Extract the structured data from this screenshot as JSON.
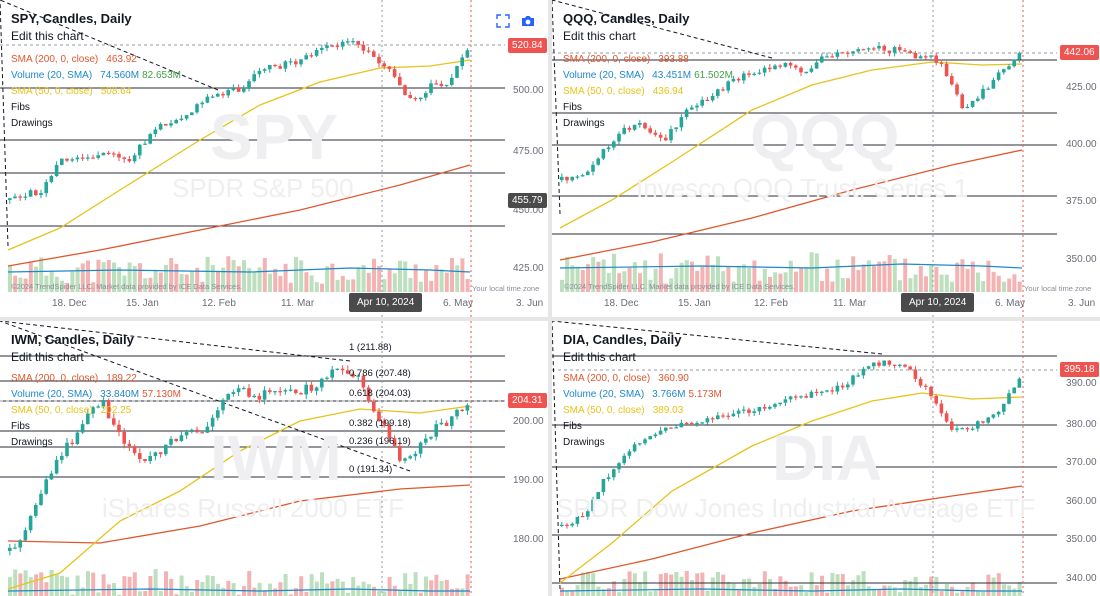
{
  "charts": [
    {
      "title": "SPY, Candles, Daily",
      "edit_label": "Edit this chart",
      "watermark_symbol": "SPY",
      "watermark_name": "SPDR S&P 500",
      "legend": [
        {
          "name": "SMA (200, 0, close)",
          "value": "463.92",
          "color": "#e0572d"
        },
        {
          "name": "Volume (20, SMA)",
          "value": "74.560M",
          "value2": "82.653M",
          "color": "#1e88c9",
          "color2": "#43a047"
        },
        {
          "name": "SMA (50, 0, close)",
          "value": "508.64",
          "color": "#e7c31a"
        },
        {
          "name": "Fibs",
          "value": "",
          "color": "#131722"
        },
        {
          "name": "Drawings",
          "value": "",
          "color": "#131722"
        }
      ],
      "y_ticks": [
        "500.00",
        "475.00",
        "450.00",
        "425.00"
      ],
      "x_ticks": [
        "18. Dec",
        "15. Jan",
        "12. Feb",
        "11. Mar",
        "6. May",
        "3. Jun"
      ],
      "price_tag": "520.84",
      "cursor_tag": "455.79",
      "date_tag": "Apr 10, 2024",
      "attribution": "©2024 TrendSpider LLC. Market data provided by ICE Data Services.",
      "timezone": "Your local time zone",
      "icons": [
        "expand-icon",
        "camera-icon"
      ]
    },
    {
      "title": "QQQ, Candles, Daily",
      "edit_label": "Edit this chart",
      "watermark_symbol": "QQQ",
      "watermark_name": "Invesco QQQ Trust, Series 1",
      "legend": [
        {
          "name": "SMA (200, 0, close)",
          "value": "393.88",
          "color": "#e0572d"
        },
        {
          "name": "Volume (20, SMA)",
          "value": "43.451M",
          "value2": "61.502M",
          "color": "#1e88c9",
          "color2": "#43a047"
        },
        {
          "name": "SMA (50, 0, close)",
          "value": "436.94",
          "color": "#e7c31a"
        },
        {
          "name": "Fibs",
          "value": "",
          "color": "#131722"
        },
        {
          "name": "Drawings",
          "value": "",
          "color": "#131722"
        }
      ],
      "y_ticks": [
        "425.00",
        "400.00",
        "375.00",
        "350.00"
      ],
      "x_ticks": [
        "18. Dec",
        "15. Jan",
        "12. Feb",
        "11. Mar",
        "6. May",
        "3. Jun"
      ],
      "price_tag": "442.06",
      "date_tag": "Apr 10, 2024",
      "attribution": "©2024 TrendSpider LLC. Market data provided by ICE Data Services.",
      "timezone": "Your local time zone"
    },
    {
      "title": "IWM, Candles, Daily",
      "edit_label": "Edit this chart",
      "watermark_symbol": "IWM",
      "watermark_name": "iShares Russell 2000 ETF",
      "legend": [
        {
          "name": "SMA (200, 0, close)",
          "value": "189.22",
          "color": "#e0572d"
        },
        {
          "name": "Volume (20, SMA)",
          "value": "33.840M",
          "value2": "57.130M",
          "color": "#1e88c9",
          "color2": "#e0572d"
        },
        {
          "name": "SMA (50, 0, close)",
          "value": "202.25",
          "color": "#e7c31a"
        },
        {
          "name": "Fibs",
          "value": "",
          "color": "#131722"
        },
        {
          "name": "Drawings",
          "value": "",
          "color": "#131722"
        }
      ],
      "y_ticks": [
        "200.00",
        "190.00",
        "180.00"
      ],
      "fib_levels": [
        "1 (211.88)",
        "0.786 (207.48)",
        "0.618 (204.03)",
        "0.382 (199.18)",
        "0.236 (196.19)",
        "0 (191.34)"
      ],
      "price_tag": "204.31"
    },
    {
      "title": "DIA, Candles, Daily",
      "edit_label": "Edit this chart",
      "watermark_symbol": "DIA",
      "watermark_name": "SPDR Dow Jones Industrial Average ETF",
      "legend": [
        {
          "name": "SMA (200, 0, close)",
          "value": "360.90",
          "color": "#e0572d"
        },
        {
          "name": "Volume (20, SMA)",
          "value": "3.766M",
          "value2": "5.173M",
          "color": "#1e88c9",
          "color2": "#e0572d"
        },
        {
          "name": "SMA (50, 0, close)",
          "value": "389.03",
          "color": "#e7c31a"
        },
        {
          "name": "Fibs",
          "value": "",
          "color": "#131722"
        },
        {
          "name": "Drawings",
          "value": "",
          "color": "#131722"
        }
      ],
      "y_ticks": [
        "390.00",
        "380.00",
        "370.00",
        "360.00",
        "350.00",
        "340.00"
      ],
      "price_tag": "395.18"
    }
  ],
  "colors": {
    "up": "#26a69a",
    "down": "#ef5350",
    "sma200": "#e0572d",
    "sma50": "#e7c31a",
    "price_tag": "#ef5350",
    "cursor_tag": "#4a4a4a"
  }
}
